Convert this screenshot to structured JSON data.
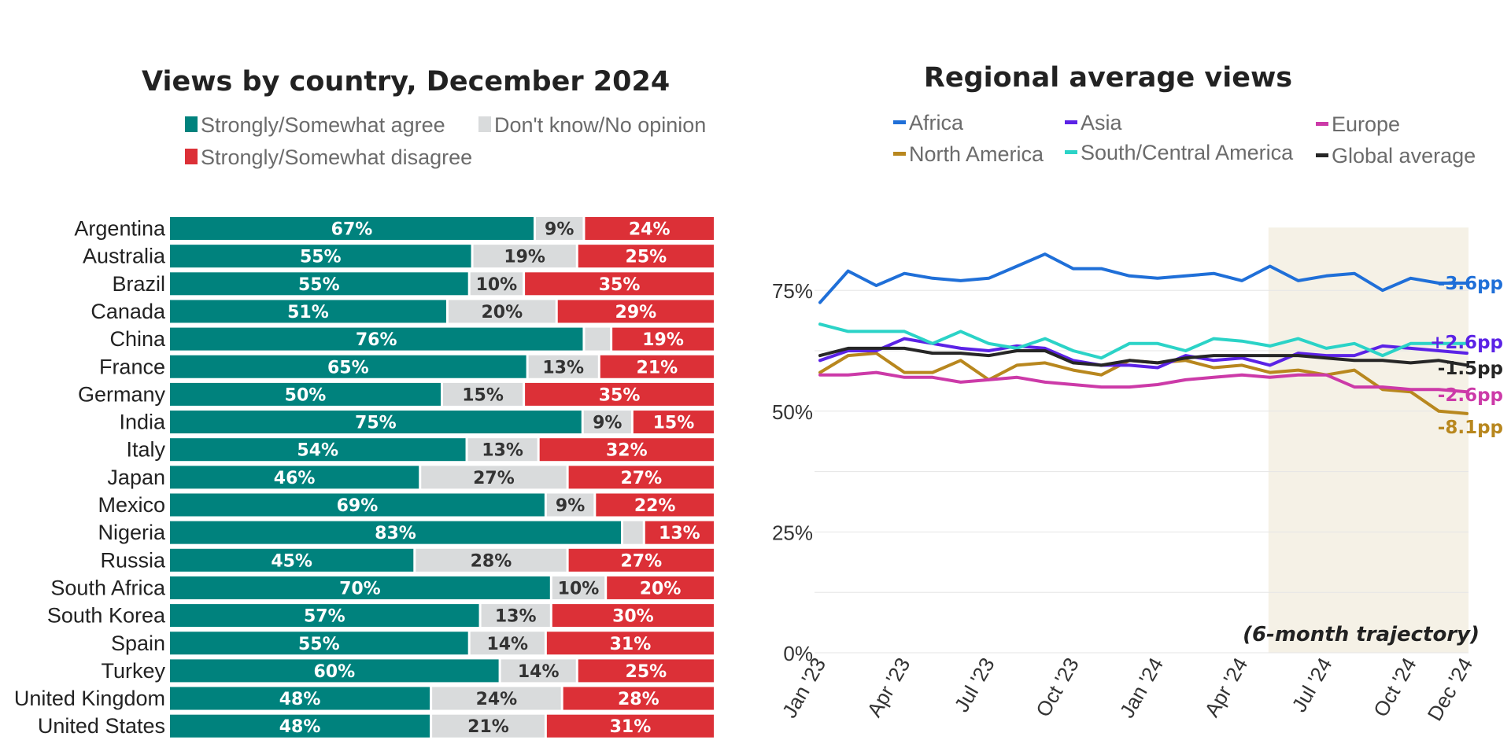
{
  "chart_data": [
    {
      "type": "bar",
      "orientation": "horizontal-stacked",
      "title": "Views by country, December 2024",
      "legend": {
        "placement": "top",
        "items": [
          {
            "label": "Strongly/Somewhat agree",
            "color": "#00827d"
          },
          {
            "label": "Don't know/No opinion",
            "color": "#d9dbdc"
          },
          {
            "label": "Strongly/Somewhat disagree",
            "color": "#dc3037"
          }
        ]
      },
      "categories": [
        "Argentina",
        "Australia",
        "Brazil",
        "Canada",
        "China",
        "France",
        "Germany",
        "India",
        "Italy",
        "Japan",
        "Mexico",
        "Nigeria",
        "Russia",
        "South Africa",
        "South Korea",
        "Spain",
        "Turkey",
        "United Kingdom",
        "United States"
      ],
      "series": [
        {
          "name": "Strongly/Somewhat agree",
          "color": "#00827d",
          "values": [
            67,
            55,
            55,
            51,
            76,
            65,
            50,
            75,
            54,
            46,
            69,
            83,
            45,
            70,
            57,
            55,
            60,
            48,
            48
          ],
          "labels": [
            "67%",
            "55%",
            "55%",
            "51%",
            "76%",
            "65%",
            "50%",
            "75%",
            "54%",
            "46%",
            "69%",
            "83%",
            "45%",
            "70%",
            "57%",
            "55%",
            "60%",
            "48%",
            "48%"
          ]
        },
        {
          "name": "Don't know/No opinion",
          "color": "#d9dbdc",
          "values": [
            9,
            19,
            10,
            20,
            5,
            13,
            15,
            9,
            13,
            27,
            9,
            4,
            28,
            10,
            13,
            14,
            14,
            24,
            21
          ],
          "labels": [
            "9%",
            "19%",
            "10%",
            "20%",
            "",
            "13%",
            "15%",
            "9%",
            "13%",
            "27%",
            "9%",
            "",
            "28%",
            "10%",
            "13%",
            "14%",
            "14%",
            "24%",
            "21%"
          ]
        },
        {
          "name": "Strongly/Somewhat disagree",
          "color": "#dc3037",
          "values": [
            24,
            25,
            35,
            29,
            19,
            21,
            35,
            15,
            32,
            27,
            22,
            13,
            27,
            20,
            30,
            31,
            25,
            28,
            31
          ],
          "labels": [
            "24%",
            "25%",
            "35%",
            "29%",
            "19%",
            "21%",
            "35%",
            "15%",
            "32%",
            "27%",
            "22%",
            "13%",
            "27%",
            "20%",
            "30%",
            "31%",
            "25%",
            "28%",
            "31%"
          ]
        }
      ]
    },
    {
      "type": "line",
      "title": "Regional average views",
      "legend_placement": "top",
      "x_tick_labels": [
        "Jan '23",
        "Apr '23",
        "Jul '23",
        "Oct '23",
        "Jan '24",
        "Apr '24",
        "Jul '24",
        "Oct '24",
        "Dec '24"
      ],
      "x": [
        "Jan '23",
        "Feb '23",
        "Mar '23",
        "Apr '23",
        "May '23",
        "Jun '23",
        "Jul '23",
        "Aug '23",
        "Sep '23",
        "Oct '23",
        "Nov '23",
        "Dec '23",
        "Jan '24",
        "Feb '24",
        "Mar '24",
        "Apr '24",
        "May '24",
        "Jun '24",
        "Jul '24",
        "Aug '24",
        "Sep '24",
        "Oct '24",
        "Nov '24",
        "Dec '24"
      ],
      "y_tick_labels": [
        "0%",
        "25%",
        "50%",
        "75%"
      ],
      "ylim": [
        0,
        88
      ],
      "grid": true,
      "highlight": {
        "from": "May '24",
        "to": "Dec '24",
        "label": "(6-month trajectory)",
        "color": "#f5f1e6"
      },
      "series": [
        {
          "name": "Africa",
          "color": "#1f6fd8",
          "end_label": "-3.6pp",
          "values": [
            72.5,
            79,
            76,
            78.5,
            77.5,
            77,
            77.5,
            80,
            82.5,
            79.5,
            79.5,
            78,
            77.5,
            78,
            78.5,
            77,
            80,
            77,
            78,
            78.5,
            75,
            77.5,
            76.5,
            76.5
          ]
        },
        {
          "name": "Asia",
          "color": "#5b22e6",
          "end_label": "+2.6pp",
          "values": [
            60.5,
            62.5,
            62.5,
            65,
            64,
            63,
            62.5,
            63.5,
            63,
            60.5,
            59.5,
            59.5,
            59,
            61.5,
            60.5,
            61,
            59.5,
            62,
            61.5,
            61.5,
            63.5,
            63,
            62.5,
            62
          ]
        },
        {
          "name": "Europe",
          "color": "#cc3aa8",
          "end_label": "-2.6pp",
          "values": [
            57.5,
            57.5,
            58,
            57,
            57,
            56,
            56.5,
            57,
            56,
            55.5,
            55,
            55,
            55.5,
            56.5,
            57,
            57.5,
            57,
            57.5,
            57.5,
            55,
            55,
            54.5,
            54.5,
            54
          ]
        },
        {
          "name": "North America",
          "color": "#b8871e",
          "end_label": "-8.1pp",
          "values": [
            58,
            61.5,
            62,
            58,
            58,
            60.5,
            56.5,
            59.5,
            60,
            58.5,
            57.5,
            60.5,
            60,
            60.5,
            59,
            59.5,
            58,
            58.5,
            57.5,
            58.5,
            54.5,
            54,
            50,
            49.5
          ]
        },
        {
          "name": "South/Central America",
          "color": "#2bd3c7",
          "end_label": "",
          "values": [
            68,
            66.5,
            66.5,
            66.5,
            64,
            66.5,
            64,
            63,
            65,
            62.5,
            61,
            64,
            64,
            62.5,
            65,
            64.5,
            63.5,
            65,
            63,
            64,
            61.5,
            64,
            64,
            64
          ]
        },
        {
          "name": "Global average",
          "color": "#262626",
          "end_label": "-1.5pp",
          "values": [
            61.5,
            63,
            63,
            63,
            62,
            62,
            61.5,
            62.5,
            62.5,
            60,
            59.5,
            60.5,
            60,
            61,
            61.5,
            61.5,
            61.5,
            61.5,
            61,
            60.5,
            60.5,
            60,
            60.5,
            59.5
          ]
        }
      ]
    }
  ]
}
